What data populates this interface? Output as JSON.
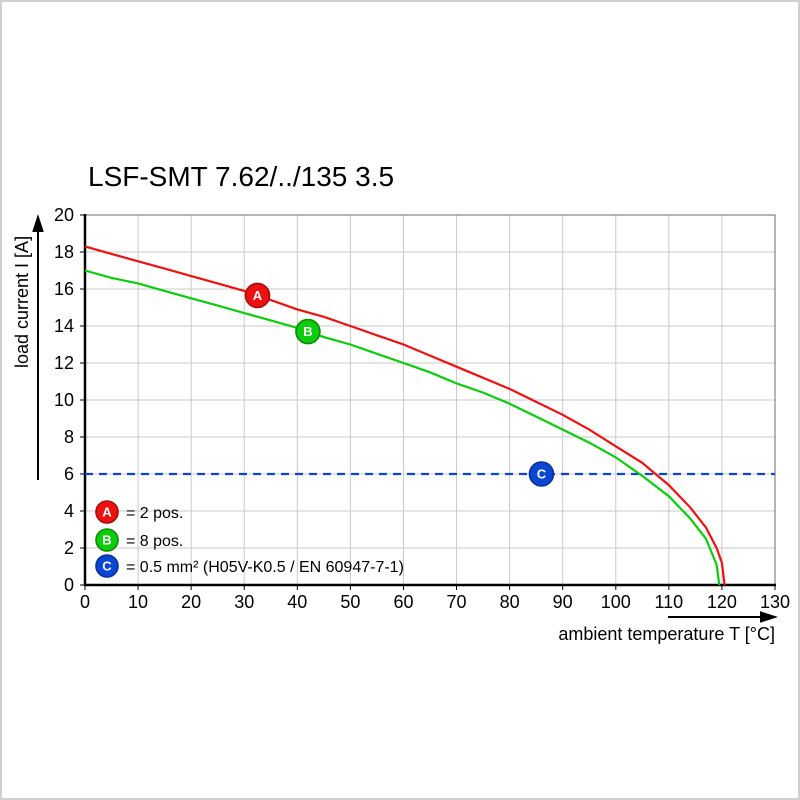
{
  "page": {
    "title": "LSF-SMT 7.62/../135 3.5"
  },
  "chart_data": {
    "type": "line",
    "title": "LSF-SMT 7.62/../135 3.5",
    "xlabel": "ambient temperature T [°C]",
    "ylabel": "load current I [A]",
    "xlim": [
      0,
      130
    ],
    "ylim": [
      0,
      20
    ],
    "x_ticks": [
      0,
      10,
      20,
      30,
      40,
      50,
      60,
      70,
      80,
      90,
      100,
      110,
      120,
      130
    ],
    "y_ticks": [
      0,
      2,
      4,
      6,
      8,
      10,
      12,
      14,
      16,
      18,
      20
    ],
    "grid": true,
    "legend_position": "bottom-left-inside",
    "series": [
      {
        "name": "C",
        "label": "0.5 mm² (H05V-K0.5 / EN 60947-7-1)",
        "color": "#0a46d2",
        "edge": "#0a2f9e",
        "dashed": true,
        "points": [
          [
            0,
            6
          ],
          [
            130,
            6
          ]
        ],
        "marker": {
          "t": 86,
          "i": 6
        }
      },
      {
        "name": "B",
        "label": "8 pos.",
        "color": "#0ccc0c",
        "edge": "#0b8a0b",
        "dashed": false,
        "points": [
          [
            0,
            17.0
          ],
          [
            5,
            16.6
          ],
          [
            10,
            16.3
          ],
          [
            15,
            15.9
          ],
          [
            20,
            15.5
          ],
          [
            25,
            15.1
          ],
          [
            30,
            14.7
          ],
          [
            35,
            14.3
          ],
          [
            40,
            13.9
          ],
          [
            45,
            13.4
          ],
          [
            50,
            13.0
          ],
          [
            55,
            12.5
          ],
          [
            60,
            12.0
          ],
          [
            65,
            11.5
          ],
          [
            70,
            10.9
          ],
          [
            75,
            10.4
          ],
          [
            80,
            9.8
          ],
          [
            85,
            9.1
          ],
          [
            90,
            8.4
          ],
          [
            95,
            7.7
          ],
          [
            100,
            6.9
          ],
          [
            105,
            5.9
          ],
          [
            110,
            4.8
          ],
          [
            114,
            3.6
          ],
          [
            117,
            2.5
          ],
          [
            119,
            1.1
          ],
          [
            119.5,
            0
          ]
        ],
        "marker": {
          "t": 42,
          "i": 13.7
        }
      },
      {
        "name": "A",
        "label": "2 pos.",
        "color": "#ee1111",
        "edge": "#a50d0d",
        "dashed": false,
        "points": [
          [
            0,
            18.3
          ],
          [
            5,
            17.9
          ],
          [
            10,
            17.5
          ],
          [
            15,
            17.1
          ],
          [
            20,
            16.7
          ],
          [
            25,
            16.3
          ],
          [
            30,
            15.9
          ],
          [
            35,
            15.4
          ],
          [
            40,
            14.9
          ],
          [
            45,
            14.5
          ],
          [
            50,
            14.0
          ],
          [
            55,
            13.5
          ],
          [
            60,
            13.0
          ],
          [
            65,
            12.4
          ],
          [
            70,
            11.8
          ],
          [
            75,
            11.2
          ],
          [
            80,
            10.6
          ],
          [
            85,
            9.9
          ],
          [
            90,
            9.2
          ],
          [
            95,
            8.4
          ],
          [
            100,
            7.5
          ],
          [
            105,
            6.6
          ],
          [
            110,
            5.4
          ],
          [
            114,
            4.2
          ],
          [
            117,
            3.1
          ],
          [
            119,
            2.0
          ],
          [
            120,
            1.2
          ],
          [
            120.5,
            0
          ]
        ],
        "marker": {
          "t": 32.5,
          "i": 15.65
        }
      }
    ],
    "legend": [
      {
        "key": "A",
        "color": "#ee1111",
        "edge": "#a50d0d",
        "text": "= 2 pos."
      },
      {
        "key": "B",
        "color": "#0ccc0c",
        "edge": "#0b8a0b",
        "text": "= 8 pos."
      },
      {
        "key": "C",
        "color": "#0a46d2",
        "edge": "#0a2f9e",
        "text": "= 0.5 mm² (H05V-K0.5 / EN 60947-7-1)"
      }
    ]
  }
}
